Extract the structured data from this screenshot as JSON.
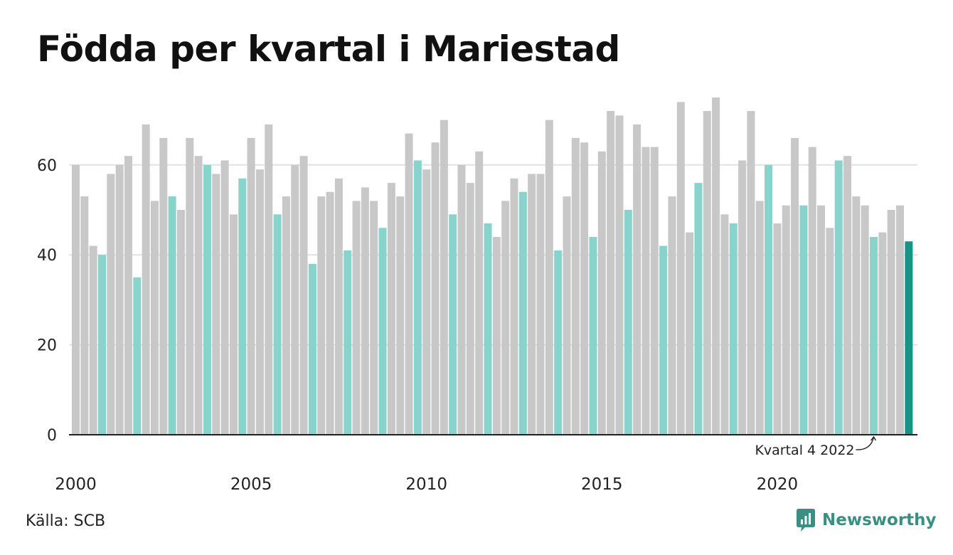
{
  "title": "Födda per kvartal i Mariestad",
  "source": "Källa: SCB",
  "brand": {
    "name": "Newsworthy",
    "icon": "bar-chart-logo-icon"
  },
  "colors": {
    "bar": "#c8c8c8",
    "highlight_quarter": "#88d3cb",
    "latest": "#1a9486",
    "axis": "#222222",
    "grid": "#e2e2e2"
  },
  "chart_data": {
    "type": "bar",
    "title": "Födda per kvartal i Mariestad",
    "xlabel": "",
    "ylabel": "",
    "ylim": [
      0,
      75
    ],
    "yticks": [
      0,
      20,
      40,
      60
    ],
    "xtick_labels": [
      "2000",
      "2005",
      "2010",
      "2015",
      "2020"
    ],
    "grid": true,
    "start": {
      "year": 2000,
      "quarter": 1
    },
    "highlight_quarter": 4,
    "annotation": {
      "text": "Kvartal 4 2022",
      "target": "2022 K4"
    },
    "categories": [
      "2000 K1",
      "2000 K2",
      "2000 K3",
      "2000 K4",
      "2001 K1",
      "2001 K2",
      "2001 K3",
      "2001 K4",
      "2002 K1",
      "2002 K2",
      "2002 K3",
      "2002 K4",
      "2003 K1",
      "2003 K2",
      "2003 K3",
      "2003 K4",
      "2004 K1",
      "2004 K2",
      "2004 K3",
      "2004 K4",
      "2005 K1",
      "2005 K2",
      "2005 K3",
      "2005 K4",
      "2006 K1",
      "2006 K2",
      "2006 K3",
      "2006 K4",
      "2007 K1",
      "2007 K2",
      "2007 K3",
      "2007 K4",
      "2008 K1",
      "2008 K2",
      "2008 K3",
      "2008 K4",
      "2009 K1",
      "2009 K2",
      "2009 K3",
      "2009 K4",
      "2010 K1",
      "2010 K2",
      "2010 K3",
      "2010 K4",
      "2011 K1",
      "2011 K2",
      "2011 K3",
      "2011 K4",
      "2012 K1",
      "2012 K2",
      "2012 K3",
      "2012 K4",
      "2013 K1",
      "2013 K2",
      "2013 K3",
      "2013 K4",
      "2014 K1",
      "2014 K2",
      "2014 K3",
      "2014 K4",
      "2015 K1",
      "2015 K2",
      "2015 K3",
      "2015 K4",
      "2016 K1",
      "2016 K2",
      "2016 K3",
      "2016 K4",
      "2017 K1",
      "2017 K2",
      "2017 K3",
      "2017 K4",
      "2018 K1",
      "2018 K2",
      "2018 K3",
      "2018 K4",
      "2019 K1",
      "2019 K2",
      "2019 K3",
      "2019 K4",
      "2020 K1",
      "2020 K2",
      "2020 K3",
      "2020 K4",
      "2021 K1",
      "2021 K2",
      "2021 K3",
      "2021 K4",
      "2022 K1",
      "2022 K2",
      "2022 K3",
      "2022 K4",
      "2023 K1",
      "2023 K2",
      "2023 K3",
      "2023 K4"
    ],
    "values": [
      60,
      53,
      42,
      40,
      58,
      60,
      62,
      35,
      69,
      52,
      66,
      53,
      50,
      66,
      62,
      60,
      58,
      61,
      49,
      57,
      66,
      59,
      69,
      49,
      53,
      60,
      62,
      38,
      53,
      54,
      57,
      41,
      52,
      55,
      52,
      46,
      56,
      53,
      67,
      61,
      59,
      65,
      70,
      49,
      60,
      56,
      63,
      47,
      44,
      52,
      57,
      54,
      58,
      58,
      70,
      41,
      53,
      66,
      65,
      44,
      63,
      72,
      71,
      50,
      69,
      64,
      64,
      42,
      53,
      74,
      45,
      56,
      72,
      75,
      49,
      47,
      61,
      72,
      52,
      60,
      47,
      51,
      66,
      51,
      64,
      51,
      46,
      61,
      62,
      53,
      51,
      44,
      45,
      50,
      51,
      43
    ]
  }
}
